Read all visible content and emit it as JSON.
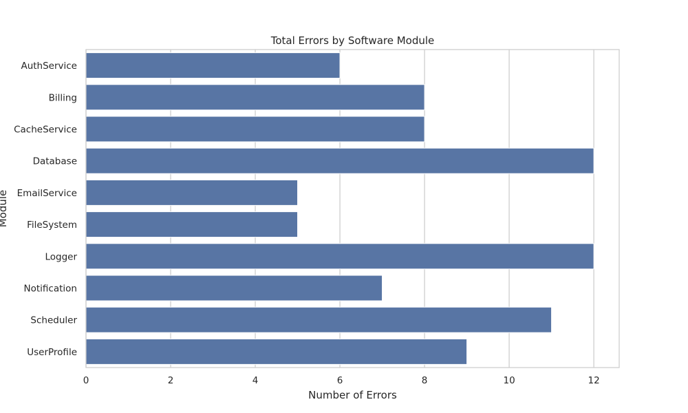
{
  "chart_data": {
    "type": "bar",
    "orientation": "horizontal",
    "title": "Total Errors by Software Module",
    "xlabel": "Number of Errors",
    "ylabel": "Module",
    "categories": [
      "AuthService",
      "Billing",
      "CacheService",
      "Database",
      "EmailService",
      "FileSystem",
      "Logger",
      "Notification",
      "Scheduler",
      "UserProfile"
    ],
    "values": [
      6,
      8,
      8,
      12,
      5,
      5,
      12,
      7,
      11,
      9
    ],
    "xlim": [
      0,
      12.6
    ],
    "xticks": [
      "0",
      "2",
      "4",
      "6",
      "8",
      "10",
      "12"
    ],
    "grid": true,
    "bar_color": "#5875a4"
  }
}
